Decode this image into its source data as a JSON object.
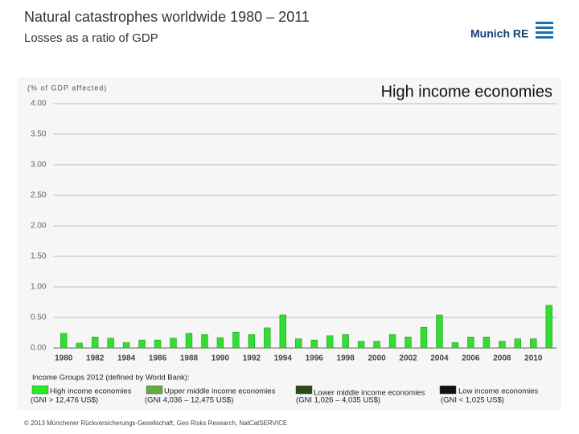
{
  "header": {
    "title": "Natural catastrophes worldwide 1980 – 2011",
    "subtitle": "Losses as a ratio of GDP",
    "logo": "Munich RE"
  },
  "chart_data": {
    "type": "bar",
    "title": "High income economies",
    "y_axis_label": "(% of GDP affected)",
    "categories": [
      "1980",
      null,
      "1982",
      null,
      "1984",
      null,
      "1986",
      null,
      "1988",
      null,
      "1990",
      null,
      "1992",
      null,
      "1994",
      null,
      "1996",
      null,
      "1998",
      null,
      "2000",
      null,
      "2002",
      null,
      "2004",
      null,
      "2006",
      null,
      "2008",
      null,
      "2010",
      null
    ],
    "values": [
      0.24,
      0.08,
      0.18,
      0.16,
      0.09,
      0.13,
      0.13,
      0.16,
      0.24,
      0.22,
      0.17,
      0.26,
      0.22,
      0.33,
      0.54,
      0.15,
      0.13,
      0.2,
      0.22,
      0.11,
      0.11,
      0.22,
      0.18,
      0.34,
      0.54,
      0.09,
      0.18,
      0.18,
      0.11,
      0.15,
      0.15,
      0.7
    ],
    "color": "#33dd33",
    "ylim": [
      0,
      4
    ],
    "yticks": [
      {
        "value": 0,
        "label": "0.00"
      },
      {
        "value": 0.5,
        "label": "0.50"
      },
      {
        "value": 1,
        "label": "1.00"
      },
      {
        "value": 1.5,
        "label": "1.50"
      },
      {
        "value": 2,
        "label": "2.00"
      },
      {
        "value": 2.5,
        "label": "2.50"
      },
      {
        "value": 3,
        "label": "3.00"
      },
      {
        "value": 3.5,
        "label": "3.50"
      },
      {
        "value": 4,
        "label": "4.00"
      }
    ],
    "grid": true,
    "legend_title": "Income Groups 2012 (defined by World Bank):",
    "groups": [
      {
        "name": "High income economies",
        "note": "(GNI > 12,476 US$)",
        "color": "#22ee22"
      },
      {
        "name": "Upper middle income economies",
        "note": "(GNI 4,036 – 12,475 US$)",
        "color": "#66aa44"
      },
      {
        "name": "Lower middle income economies",
        "note": "(GNI 1,026 – 4,035 US$)",
        "color": "#2a4a1a"
      },
      {
        "name": "Low income economies",
        "note": "(GNI < 1,025 US$)",
        "color": "#111111"
      }
    ]
  },
  "footer": "© 2013 Münchener Rückversicherungs-Gesellschaft, Geo Risks Research, NatCatSERVICE"
}
